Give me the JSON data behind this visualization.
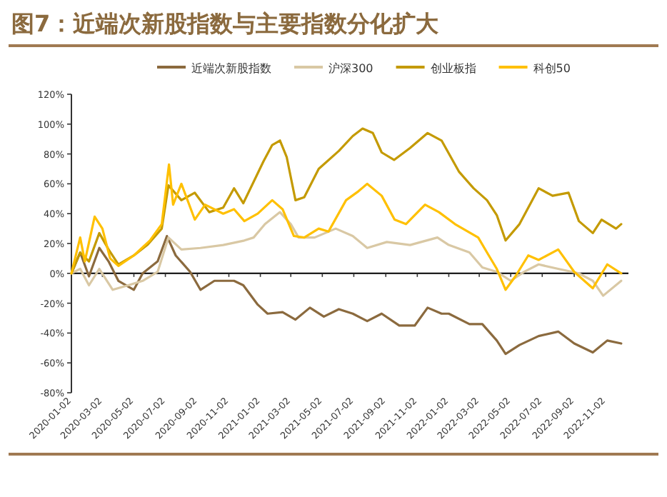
{
  "chart_data": {
    "type": "line",
    "title": "图7：近端次新股指数与主要指数分化扩大",
    "legend": "top",
    "marker": "none",
    "line_style": "solid",
    "xlim": [
      "2020-01-02",
      "2022-12-16"
    ],
    "xticks": [
      "2020-01-02",
      "2020-03-02",
      "2020-05-02",
      "2020-07-02",
      "2020-09-02",
      "2020-11-02",
      "2021-01-02",
      "2021-03-02",
      "2021-05-02",
      "2021-07-02",
      "2021-09-02",
      "2021-11-02",
      "2022-01-02",
      "2022-03-02",
      "2022-05-02",
      "2022-07-02",
      "2022-09-02",
      "2022-11-02"
    ],
    "ylim": [
      -80,
      120
    ],
    "yticks": [
      {
        "value": -80,
        "label": "-80%"
      },
      {
        "value": -60,
        "label": "-60%"
      },
      {
        "value": -40,
        "label": "-40%"
      },
      {
        "value": -20,
        "label": "-20%"
      },
      {
        "value": 0,
        "label": "0%"
      },
      {
        "value": 20,
        "label": "20%"
      },
      {
        "value": 40,
        "label": "40%"
      },
      {
        "value": 60,
        "label": "60%"
      },
      {
        "value": 80,
        "label": "80%"
      },
      {
        "value": 100,
        "label": "100%"
      },
      {
        "value": 120,
        "label": "120%"
      }
    ],
    "series": [
      {
        "name": "近端次新股指数",
        "color": "#8b6a3e",
        "x": [
          "2020-01-02",
          "2020-01-19",
          "2020-02-05",
          "2020-02-25",
          "2020-03-14",
          "2020-04-02",
          "2020-05-02",
          "2020-05-19",
          "2020-06-17",
          "2020-07-05",
          "2020-07-22",
          "2020-08-19",
          "2020-09-08",
          "2020-10-05",
          "2020-11-12",
          "2020-11-30",
          "2020-12-28",
          "2021-01-16",
          "2021-02-14",
          "2021-03-11",
          "2021-04-08",
          "2021-05-05",
          "2021-06-03",
          "2021-06-30",
          "2021-07-28",
          "2021-08-25",
          "2021-09-28",
          "2021-10-28",
          "2021-11-22",
          "2021-12-19",
          "2022-01-02",
          "2022-02-11",
          "2022-03-08",
          "2022-04-05",
          "2022-04-22",
          "2022-05-19",
          "2022-06-25",
          "2022-08-02",
          "2022-09-02",
          "2022-10-08",
          "2022-11-05",
          "2022-12-02"
        ],
        "values": [
          0,
          14,
          -2,
          17,
          8,
          -5,
          -11,
          0,
          8,
          25,
          12,
          1,
          -11,
          -5,
          -5,
          -8,
          -21,
          -27,
          -26,
          -31,
          -23,
          -29,
          -24,
          -27,
          -32,
          -27,
          -35,
          -35,
          -23,
          -27,
          -27,
          -34,
          -34,
          -45,
          -54,
          -48,
          -42,
          -39,
          -47,
          -53,
          -45,
          -47
        ]
      },
      {
        "name": "沪深300",
        "color": "#d9c8a4",
        "x": [
          "2020-01-02",
          "2020-01-19",
          "2020-02-05",
          "2020-02-25",
          "2020-03-22",
          "2020-04-21",
          "2020-05-19",
          "2020-06-17",
          "2020-07-08",
          "2020-08-02",
          "2020-09-08",
          "2020-10-22",
          "2020-12-02",
          "2020-12-20",
          "2021-01-11",
          "2021-02-09",
          "2021-03-02",
          "2021-03-17",
          "2021-04-17",
          "2021-05-28",
          "2021-06-30",
          "2021-07-28",
          "2021-09-04",
          "2021-10-19",
          "2021-12-11",
          "2022-01-02",
          "2022-02-11",
          "2022-03-08",
          "2022-04-05",
          "2022-05-02",
          "2022-05-28",
          "2022-06-25",
          "2022-08-02",
          "2022-09-11",
          "2022-10-08",
          "2022-10-28",
          "2022-12-02"
        ],
        "values": [
          0,
          3,
          -8,
          3,
          -11,
          -8,
          -5,
          1,
          24,
          16,
          17,
          19,
          22,
          24,
          33,
          41,
          33,
          24,
          24,
          30,
          25,
          17,
          21,
          19,
          24,
          19,
          14,
          4,
          1,
          -5,
          1,
          6,
          3,
          0,
          -5,
          -15,
          -5
        ]
      },
      {
        "name": "创业板指",
        "color": "#c49a00",
        "x": [
          "2020-01-02",
          "2020-01-19",
          "2020-02-05",
          "2020-02-25",
          "2020-03-14",
          "2020-04-02",
          "2020-05-02",
          "2020-05-28",
          "2020-06-25",
          "2020-07-08",
          "2020-08-02",
          "2020-08-28",
          "2020-09-25",
          "2020-10-22",
          "2020-11-12",
          "2020-11-30",
          "2021-01-08",
          "2021-01-25",
          "2021-02-09",
          "2021-02-22",
          "2021-03-11",
          "2021-03-28",
          "2021-04-25",
          "2021-06-03",
          "2021-06-30",
          "2021-07-19",
          "2021-08-08",
          "2021-08-25",
          "2021-09-18",
          "2021-10-19",
          "2021-11-22",
          "2021-12-19",
          "2022-01-22",
          "2022-02-19",
          "2022-03-17",
          "2022-04-05",
          "2022-04-22",
          "2022-05-19",
          "2022-06-25",
          "2022-07-22",
          "2022-08-22",
          "2022-09-11",
          "2022-10-08",
          "2022-10-25",
          "2022-11-22",
          "2022-12-02"
        ],
        "values": [
          0,
          14,
          8,
          27,
          16,
          6,
          12,
          19,
          30,
          59,
          49,
          54,
          41,
          44,
          57,
          47,
          75,
          86,
          89,
          78,
          49,
          51,
          70,
          82,
          92,
          97,
          94,
          81,
          76,
          84,
          94,
          89,
          68,
          57,
          49,
          39,
          22,
          33,
          57,
          52,
          54,
          35,
          27,
          36,
          30,
          33
        ]
      },
      {
        "name": "科创50",
        "color": "#ffc000",
        "x": [
          "2020-01-02",
          "2020-01-19",
          "2020-01-28",
          "2020-02-16",
          "2020-03-02",
          "2020-03-17",
          "2020-04-02",
          "2020-05-02",
          "2020-06-02",
          "2020-06-25",
          "2020-07-09",
          "2020-07-17",
          "2020-08-02",
          "2020-08-28",
          "2020-09-17",
          "2020-10-22",
          "2020-11-12",
          "2020-12-02",
          "2020-12-28",
          "2021-01-25",
          "2021-02-14",
          "2021-03-08",
          "2021-03-28",
          "2021-04-25",
          "2021-05-14",
          "2021-06-17",
          "2021-07-11",
          "2021-07-28",
          "2021-08-25",
          "2021-09-19",
          "2021-10-11",
          "2021-11-17",
          "2021-12-14",
          "2022-01-14",
          "2022-02-28",
          "2022-03-17",
          "2022-04-05",
          "2022-04-22",
          "2022-05-11",
          "2022-06-05",
          "2022-06-25",
          "2022-08-02",
          "2022-09-02",
          "2022-10-08",
          "2022-11-05",
          "2022-12-02"
        ],
        "values": [
          0,
          24,
          8,
          38,
          30,
          10,
          5,
          12,
          22,
          33,
          73,
          46,
          60,
          36,
          46,
          40,
          43,
          35,
          40,
          49,
          43,
          25,
          24,
          30,
          28,
          49,
          55,
          60,
          52,
          36,
          33,
          46,
          41,
          33,
          24,
          14,
          3,
          -11,
          -2,
          12,
          9,
          16,
          1,
          -10,
          6,
          0
        ]
      }
    ]
  }
}
